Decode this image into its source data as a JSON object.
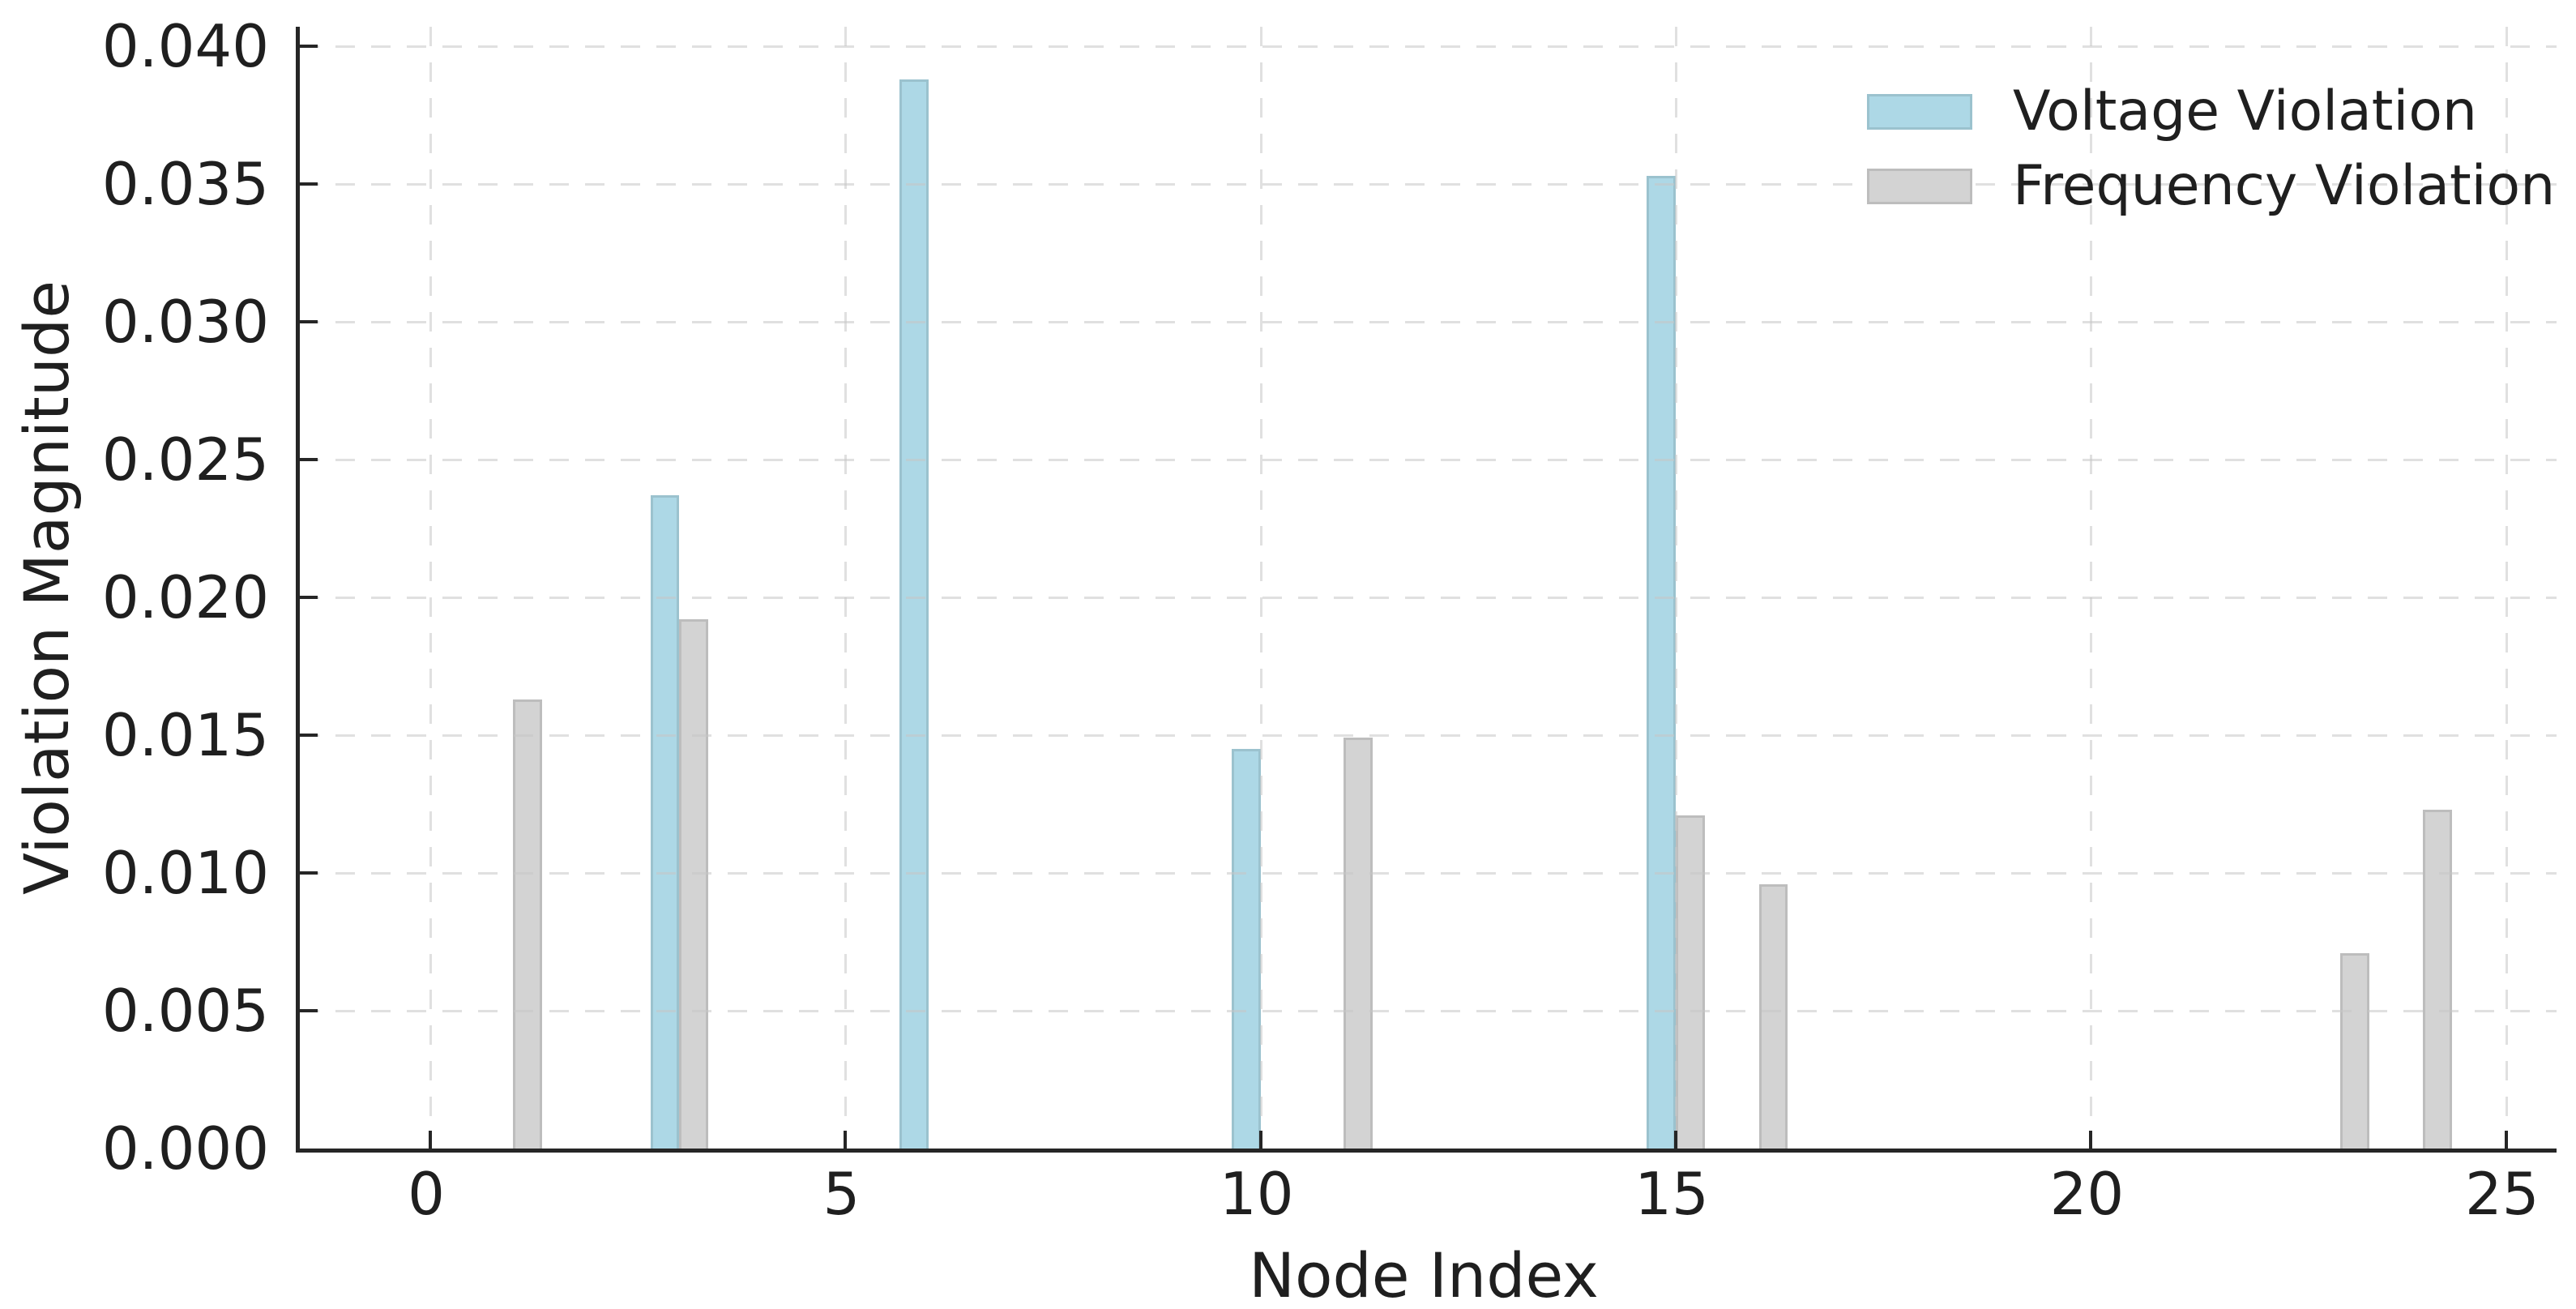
{
  "chart_data": {
    "type": "bar",
    "title": "",
    "xlabel": "Node Index",
    "ylabel": "Violation Magnitude",
    "xlim": [
      -1.571,
      25.607
    ],
    "ylim": [
      0,
      0.0407
    ],
    "grid": "both-dashed",
    "bar_width": 0.35,
    "x_ticks": [
      {
        "value": 0,
        "label": "0"
      },
      {
        "value": 5,
        "label": "5"
      },
      {
        "value": 10,
        "label": "10"
      },
      {
        "value": 15,
        "label": "15"
      },
      {
        "value": 20,
        "label": "20"
      },
      {
        "value": 25,
        "label": "25"
      }
    ],
    "y_ticks": [
      {
        "value": 0.0,
        "label": "0.000"
      },
      {
        "value": 0.005,
        "label": "0.005"
      },
      {
        "value": 0.01,
        "label": "0.010"
      },
      {
        "value": 0.015,
        "label": "0.015"
      },
      {
        "value": 0.02,
        "label": "0.020"
      },
      {
        "value": 0.025,
        "label": "0.025"
      },
      {
        "value": 0.03,
        "label": "0.030"
      },
      {
        "value": 0.035,
        "label": "0.035"
      },
      {
        "value": 0.04,
        "label": "0.040"
      }
    ],
    "series": [
      {
        "name": "Voltage Violation",
        "color": "#ADD8E6",
        "offset": -0.175,
        "points": [
          {
            "x": 3,
            "y": 0.0237
          },
          {
            "x": 6,
            "y": 0.0388
          },
          {
            "x": 10,
            "y": 0.0145
          },
          {
            "x": 15,
            "y": 0.0353
          }
        ]
      },
      {
        "name": "Frequency Violation",
        "color": "#D3D3D3",
        "offset": 0.175,
        "points": [
          {
            "x": 1,
            "y": 0.0163
          },
          {
            "x": 3,
            "y": 0.0192
          },
          {
            "x": 11,
            "y": 0.0149
          },
          {
            "x": 15,
            "y": 0.0121
          },
          {
            "x": 16,
            "y": 0.0096
          },
          {
            "x": 23,
            "y": 0.0071
          },
          {
            "x": 24,
            "y": 0.0123
          }
        ]
      }
    ],
    "legend": {
      "position": "upper right",
      "frame": false,
      "entries": [
        "Voltage Violation",
        "Frequency Violation"
      ]
    }
  }
}
